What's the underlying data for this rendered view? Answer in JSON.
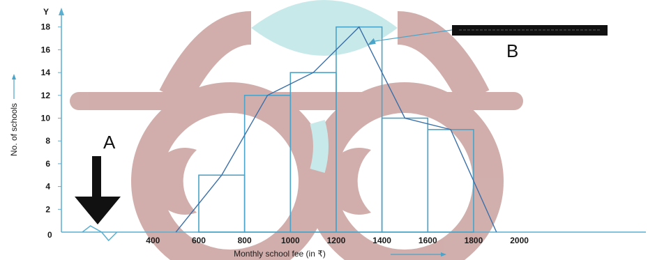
{
  "chart_data": {
    "type": "bar",
    "title": "",
    "xlabel": "Monthly school fee (in ₹)",
    "ylabel": "No. of schools",
    "y_axis_letter": "Y",
    "x_ticks": [
      400,
      600,
      800,
      1000,
      1200,
      1400,
      1600,
      1800,
      2000
    ],
    "y_ticks": [
      2,
      4,
      6,
      8,
      10,
      12,
      14,
      16,
      18
    ],
    "origin_label": "0",
    "xlim": [
      0,
      2300
    ],
    "ylim": [
      0,
      19
    ],
    "histogram": [
      {
        "from": 600,
        "to": 800,
        "value": 5
      },
      {
        "from": 800,
        "to": 1000,
        "value": 12
      },
      {
        "from": 1000,
        "to": 1200,
        "value": 14
      },
      {
        "from": 1200,
        "to": 1400,
        "value": 18
      },
      {
        "from": 1400,
        "to": 1600,
        "value": 10
      },
      {
        "from": 1600,
        "to": 1800,
        "value": 9
      }
    ],
    "frequency_polygon": {
      "x": [
        500,
        700,
        900,
        1100,
        1300,
        1500,
        1700,
        1900
      ],
      "y": [
        0,
        5,
        12,
        14,
        18,
        10,
        9,
        0
      ]
    },
    "annotations": {
      "A": "A",
      "B": "B"
    },
    "colors": {
      "bars": "#4aa3c8",
      "polygon": "#3a6fa8",
      "axes": "#5aaed0",
      "arrow": "#111111",
      "watermark_maroon": "#c9a19d",
      "watermark_teal": "#bfe6e6"
    }
  }
}
